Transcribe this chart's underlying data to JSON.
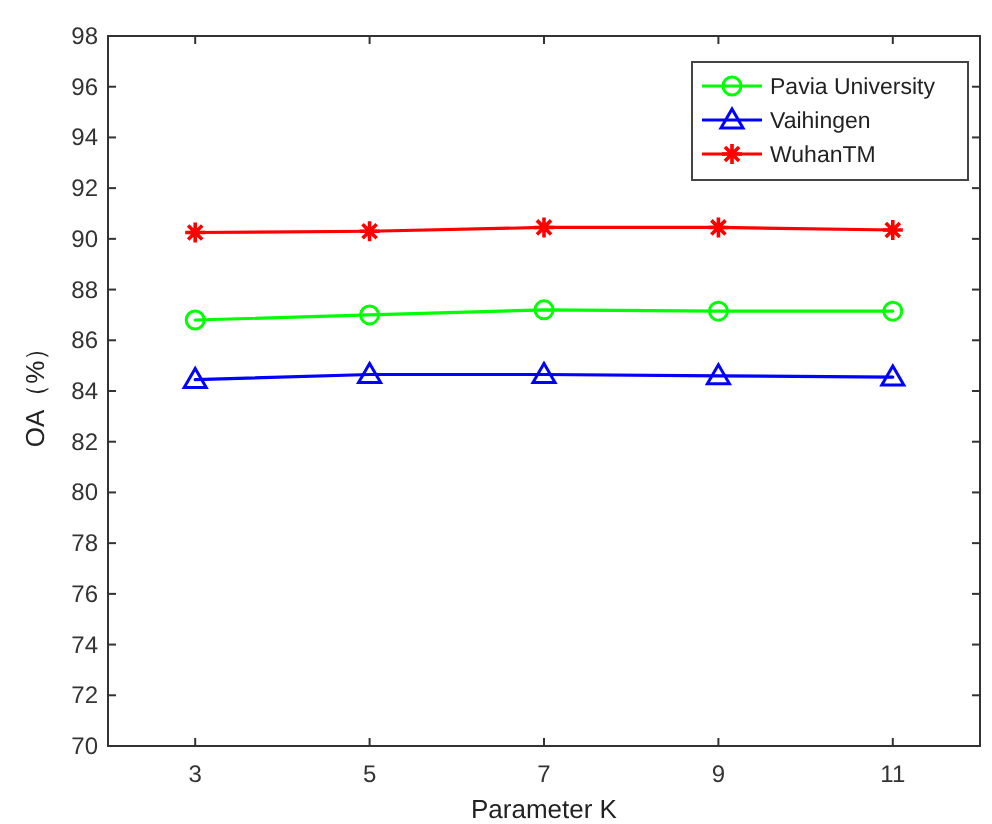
{
  "chart_data": {
    "type": "line",
    "xlabel": "Parameter K",
    "ylabel": "OA（%）",
    "x": [
      3,
      5,
      7,
      9,
      11
    ],
    "series": [
      {
        "name": "Pavia University",
        "color": "#00ff00",
        "marker": "circle",
        "values": [
          86.8,
          87.0,
          87.2,
          87.15,
          87.15
        ]
      },
      {
        "name": "Vaihingen",
        "color": "#0000ff",
        "marker": "triangle",
        "values": [
          84.45,
          84.65,
          84.65,
          84.6,
          84.55
        ]
      },
      {
        "name": "WuhanTM",
        "color": "#ff0000",
        "marker": "cross",
        "values": [
          90.25,
          90.3,
          90.45,
          90.45,
          90.35
        ]
      }
    ],
    "xlim": [
      2,
      12
    ],
    "xticks": [
      3,
      5,
      7,
      9,
      11
    ],
    "ylim": [
      70,
      98
    ],
    "yticks": [
      70,
      72,
      74,
      76,
      78,
      80,
      82,
      84,
      86,
      88,
      90,
      92,
      94,
      96,
      98
    ],
    "grid": false,
    "legend": "top right",
    "line_style": "solid"
  }
}
